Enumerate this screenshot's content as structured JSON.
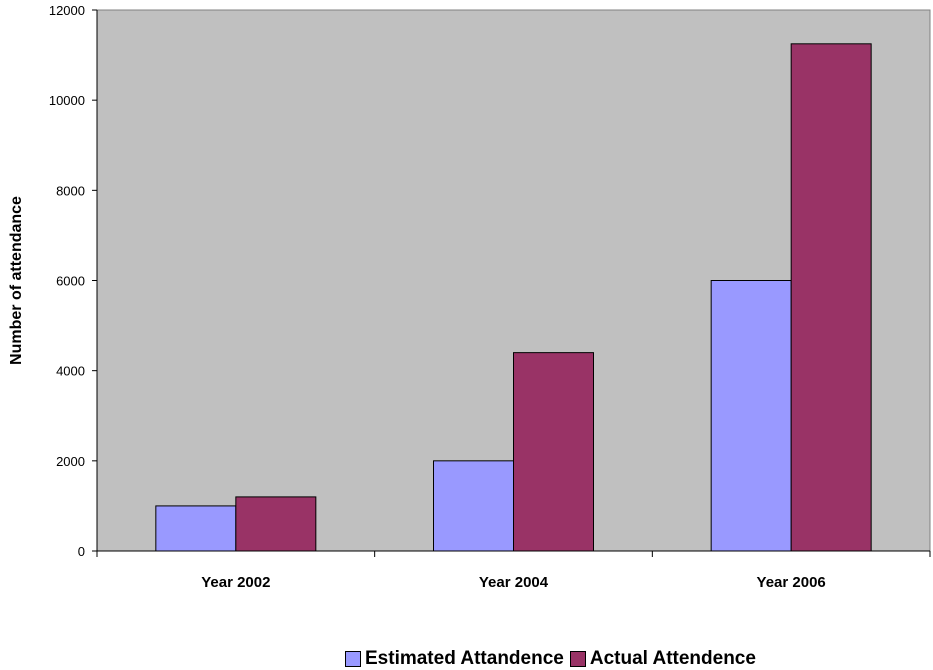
{
  "chart_data": {
    "type": "bar",
    "categories": [
      "Year 2002",
      "Year 2004",
      "Year 2006"
    ],
    "series": [
      {
        "name": "Estimated Attandence",
        "values": [
          1000,
          2000,
          6000
        ],
        "color": "#9999FF"
      },
      {
        "name": "Actual Attendence",
        "values": [
          1200,
          4400,
          11250
        ],
        "color": "#993366"
      }
    ],
    "title": "",
    "xlabel": "",
    "ylabel": "Number of attendance",
    "ylim": [
      0,
      12000
    ],
    "yticks": [
      "0",
      "2000",
      "4000",
      "6000",
      "8000",
      "10000",
      "12000"
    ],
    "plot_background": "#C0C0C0",
    "grid": false,
    "legend_position": "bottom"
  }
}
